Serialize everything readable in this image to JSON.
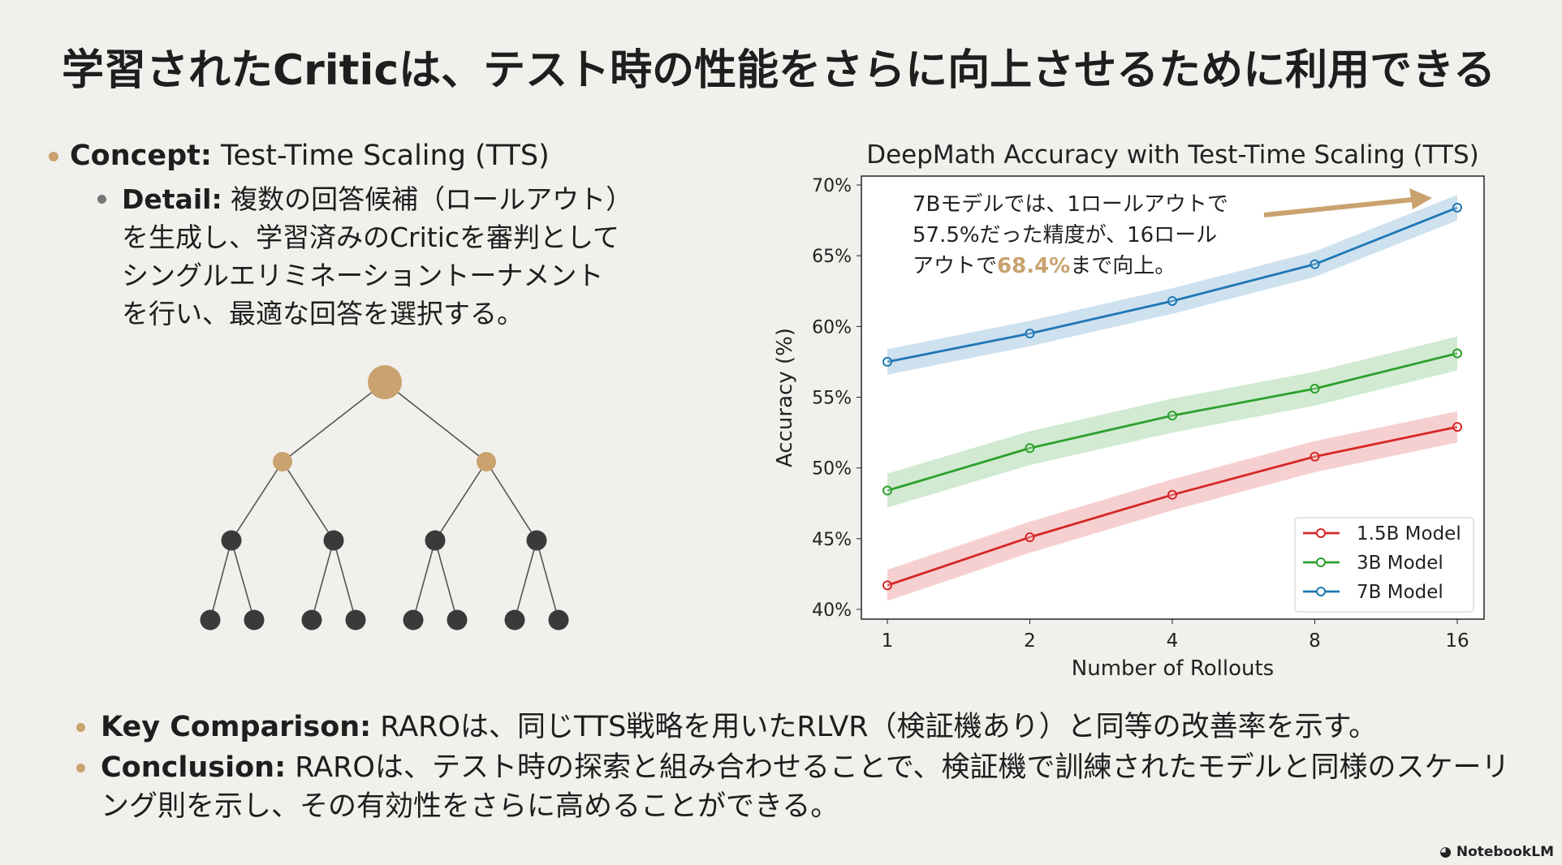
{
  "title": "学習されたCriticは、テスト時の性能をさらに向上させるために利用できる",
  "concept": {
    "label": "Concept:",
    "text": " Test-Time Scaling (TTS)"
  },
  "detail": {
    "label": "Detail:",
    "text": " 複数の回答候補（ロールアウト）を生成し、学習済みのCriticを審判としてシングルエリミネーショントーナメントを行い、最適な回答を選択する。"
  },
  "key_comparison": {
    "label": "Key Comparison:",
    "text": " RAROは、同じTTS戦略を用いたRLVR（検証機あり）と同等の改善率を示す。"
  },
  "conclusion": {
    "label": "Conclusion:",
    "text": " RAROは、テスト時の探索と組み合わせることで、検証機で訓練されたモデルと同様のスケーリング則を示し、その有効性をさらに高めることができる。"
  },
  "branding": "NotebookLM",
  "colors": {
    "accent": "#c9a26f",
    "node_dark": "#3a3a3a",
    "red": "#d62728",
    "green": "#2ca02c",
    "blue": "#1f77b4"
  },
  "chart_data": {
    "type": "line",
    "title": "DeepMath Accuracy with Test-Time Scaling (TTS)",
    "xlabel": "Number of Rollouts",
    "ylabel": "Accuracy (%)",
    "x": [
      1,
      2,
      4,
      8,
      16
    ],
    "x_scale": "log2",
    "ylim": [
      40,
      70
    ],
    "yticks": [
      40,
      45,
      50,
      55,
      60,
      65,
      70
    ],
    "ytick_labels": [
      "40%",
      "45%",
      "50%",
      "55%",
      "60%",
      "65%",
      "70%"
    ],
    "legend_position": "lower-right",
    "series": [
      {
        "name": "1.5B Model",
        "color": "#d62728",
        "values": [
          41.7,
          45.1,
          48.1,
          50.8,
          52.9
        ],
        "band": 1.1
      },
      {
        "name": "3B Model",
        "color": "#2ca02c",
        "values": [
          48.4,
          51.4,
          53.7,
          55.6,
          58.1
        ],
        "band": 1.2
      },
      {
        "name": "7B Model",
        "color": "#1f77b4",
        "values": [
          57.5,
          59.5,
          61.8,
          64.4,
          68.4
        ],
        "band": 0.9
      }
    ],
    "annotation": {
      "line1": "7Bモデルでは、1ロールアウトで",
      "line2": "57.5%だった精度が、16ロール",
      "line3_pre": "アウトで",
      "highlight": "68.4%",
      "line3_post": "まで向上。"
    }
  }
}
